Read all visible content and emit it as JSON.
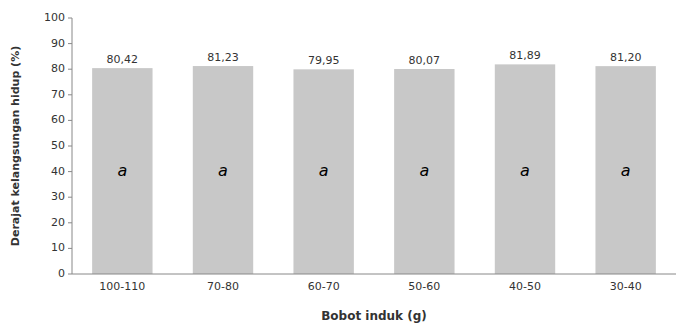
{
  "chart_data": {
    "type": "bar",
    "xlabel": "Bobot induk (g)",
    "ylabel": "Derajat kelangsungan hidup (%)",
    "categories": [
      "100-110",
      "70-80",
      "60-70",
      "50-60",
      "40-50",
      "30-40"
    ],
    "values": [
      80.42,
      81.23,
      79.95,
      80.07,
      81.89,
      81.2
    ],
    "value_labels": [
      "80,42",
      "81,23",
      "79,95",
      "80,07",
      "81,89",
      "81,20"
    ],
    "data_labels": true,
    "color": "#c8c8c8",
    "annotations": [
      {
        "text": "a",
        "x": "100-110",
        "y": 40
      },
      {
        "text": "a",
        "x": "70-80",
        "y": 40
      },
      {
        "text": "a",
        "x": "60-70",
        "y": 40
      },
      {
        "text": "a",
        "x": "50-60",
        "y": 40
      },
      {
        "text": "a",
        "x": "40-50",
        "y": 40
      },
      {
        "text": "a",
        "x": "30-40",
        "y": 40
      }
    ],
    "ylim": [
      0,
      100
    ],
    "yticks": [
      0,
      10,
      20,
      30,
      40,
      50,
      60,
      70,
      80,
      90,
      100
    ],
    "grid": false
  }
}
